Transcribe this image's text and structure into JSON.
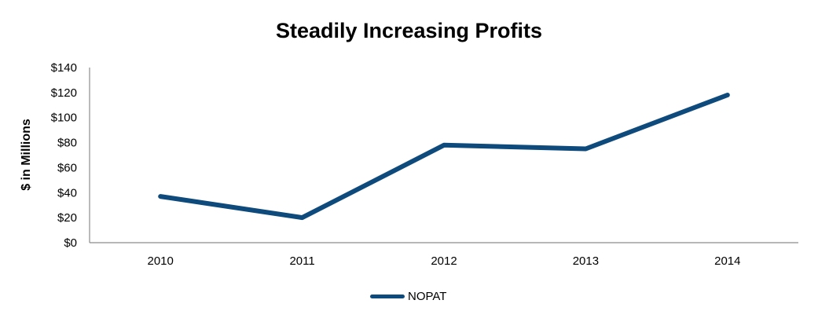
{
  "chart_data": {
    "type": "line",
    "title": "Steadily Increasing Profits",
    "xlabel": "",
    "ylabel": "$ in Millions",
    "categories": [
      "2010",
      "2011",
      "2012",
      "2013",
      "2014"
    ],
    "y_ticks": [
      "$0",
      "$20",
      "$40",
      "$60",
      "$80",
      "$100",
      "$120",
      "$140"
    ],
    "ylim": [
      0,
      140
    ],
    "grid": false,
    "legend_position": "bottom",
    "series": [
      {
        "name": "NOPAT",
        "color": "#0e4a7b",
        "values": [
          37,
          20,
          78,
          75,
          118
        ]
      }
    ]
  }
}
